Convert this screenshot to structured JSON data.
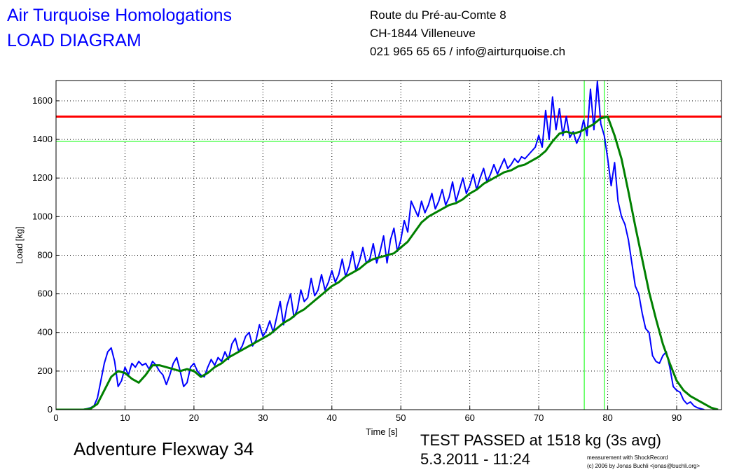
{
  "header": {
    "title": "Air Turquoise Homologations",
    "subtitle": "LOAD DIAGRAM",
    "address": [
      "Route du Pré-au-Comte 8",
      "CH-1844 Villeneuve",
      "021 965 65 65 / info@airturquoise.ch"
    ]
  },
  "chart_data": {
    "type": "line",
    "x_label": "Time [s]",
    "y_label": "Load [kg]",
    "xlim": [
      0,
      96.5
    ],
    "ylim": [
      0,
      1705
    ],
    "xticks": [
      0,
      10,
      20,
      30,
      40,
      50,
      60,
      70,
      80,
      90
    ],
    "yticks": [
      0,
      200,
      400,
      600,
      800,
      1000,
      1200,
      1400,
      1600
    ],
    "grid": true,
    "series": [
      {
        "color": "#0000ff",
        "x": [
          0,
          0.5,
          1,
          1.5,
          2,
          2.5,
          3,
          3.5,
          4,
          4.5,
          5,
          5.5,
          6,
          6.5,
          7,
          7.5,
          8,
          8.5,
          9,
          9.5,
          10,
          10.5,
          11,
          11.5,
          12,
          12.5,
          13,
          13.5,
          14,
          14.5,
          15,
          15.5,
          16,
          16.5,
          17,
          17.5,
          18,
          18.5,
          19,
          19.5,
          20,
          20.5,
          21,
          21.5,
          22,
          22.5,
          23,
          23.5,
          24,
          24.5,
          25,
          25.5,
          26,
          26.5,
          27,
          27.5,
          28,
          28.5,
          29,
          29.5,
          30,
          30.5,
          31,
          31.5,
          32,
          32.5,
          33,
          33.5,
          34,
          34.5,
          35,
          35.5,
          36,
          36.5,
          37,
          37.5,
          38,
          38.5,
          39,
          39.5,
          40,
          40.5,
          41,
          41.5,
          42,
          42.5,
          43,
          43.5,
          44,
          44.5,
          45,
          45.5,
          46,
          46.5,
          47,
          47.5,
          48,
          48.5,
          49,
          49.5,
          50,
          50.5,
          51,
          51.5,
          52,
          52.5,
          53,
          53.5,
          54,
          54.5,
          55,
          55.5,
          56,
          56.5,
          57,
          57.5,
          58,
          58.5,
          59,
          59.5,
          60,
          60.5,
          61,
          61.5,
          62,
          62.5,
          63,
          63.5,
          64,
          64.5,
          65,
          65.5,
          66,
          66.5,
          67,
          67.5,
          68,
          68.5,
          69,
          69.5,
          70,
          70.5,
          71,
          71.5,
          72,
          72.5,
          73,
          73.5,
          74,
          74.5,
          75,
          75.5,
          76,
          76.5,
          77,
          77.5,
          78,
          78.5,
          79,
          79.5,
          80,
          80.5,
          81,
          81.5,
          82,
          82.5,
          83,
          83.5,
          84,
          84.5,
          85,
          85.5,
          86,
          86.5,
          87,
          87.5,
          88,
          88.5,
          89,
          89.5,
          90,
          90.5,
          91,
          91.5,
          92,
          92.5,
          93,
          93.5,
          94
        ],
        "values": [
          0,
          0,
          0,
          0,
          0,
          0,
          0,
          0,
          2,
          5,
          10,
          20,
          60,
          150,
          240,
          300,
          320,
          250,
          120,
          150,
          220,
          180,
          240,
          220,
          250,
          230,
          240,
          210,
          250,
          230,
          200,
          180,
          130,
          180,
          240,
          270,
          200,
          120,
          140,
          220,
          240,
          200,
          180,
          170,
          220,
          260,
          230,
          270,
          250,
          300,
          260,
          340,
          370,
          300,
          330,
          380,
          400,
          330,
          360,
          440,
          380,
          410,
          460,
          400,
          480,
          560,
          440,
          540,
          600,
          480,
          520,
          620,
          560,
          580,
          680,
          590,
          620,
          700,
          620,
          660,
          720,
          660,
          700,
          780,
          690,
          740,
          820,
          720,
          770,
          840,
          760,
          780,
          860,
          760,
          820,
          900,
          760,
          880,
          940,
          820,
          880,
          980,
          920,
          1080,
          1040,
          1000,
          1080,
          1020,
          1060,
          1120,
          1040,
          1080,
          1140,
          1060,
          1100,
          1180,
          1080,
          1140,
          1200,
          1120,
          1160,
          1220,
          1140,
          1200,
          1250,
          1180,
          1220,
          1270,
          1220,
          1260,
          1300,
          1250,
          1270,
          1300,
          1280,
          1310,
          1300,
          1320,
          1340,
          1360,
          1420,
          1360,
          1550,
          1400,
          1620,
          1450,
          1560,
          1420,
          1520,
          1410,
          1440,
          1380,
          1420,
          1500,
          1420,
          1660,
          1450,
          1700,
          1480,
          1420,
          1300,
          1160,
          1280,
          1080,
          1000,
          960,
          880,
          760,
          640,
          600,
          500,
          420,
          400,
          280,
          250,
          240,
          280,
          300,
          220,
          120,
          100,
          90,
          50,
          30,
          40,
          20,
          10,
          5,
          0
        ]
      },
      {
        "color": "#008000",
        "x": [
          0,
          1,
          2,
          3,
          4,
          5,
          6,
          7,
          8,
          9,
          10,
          11,
          12,
          13,
          14,
          15,
          16,
          17,
          18,
          19,
          20,
          21,
          22,
          23,
          24,
          25,
          26,
          27,
          28,
          29,
          30,
          31,
          32,
          33,
          34,
          35,
          36,
          37,
          38,
          39,
          40,
          41,
          42,
          43,
          44,
          45,
          46,
          47,
          48,
          49,
          50,
          51,
          52,
          53,
          54,
          55,
          56,
          57,
          58,
          59,
          60,
          61,
          62,
          63,
          64,
          65,
          66,
          67,
          68,
          69,
          70,
          71,
          72,
          73,
          74,
          75,
          76,
          77,
          78,
          79,
          80,
          81,
          82,
          83,
          84,
          85,
          86,
          87,
          88,
          89,
          90,
          91,
          92,
          93,
          94,
          95,
          96
        ],
        "values": [
          0,
          0,
          0,
          0,
          0,
          5,
          30,
          100,
          170,
          200,
          190,
          160,
          140,
          180,
          230,
          230,
          220,
          210,
          200,
          210,
          200,
          170,
          190,
          220,
          240,
          270,
          290,
          310,
          330,
          350,
          370,
          390,
          420,
          450,
          470,
          500,
          520,
          550,
          580,
          610,
          640,
          660,
          690,
          710,
          730,
          760,
          780,
          790,
          800,
          810,
          840,
          870,
          920,
          970,
          1000,
          1020,
          1040,
          1060,
          1070,
          1090,
          1120,
          1140,
          1170,
          1190,
          1210,
          1230,
          1240,
          1260,
          1270,
          1290,
          1310,
          1340,
          1390,
          1430,
          1440,
          1430,
          1440,
          1460,
          1480,
          1510,
          1518,
          1420,
          1300,
          1130,
          950,
          780,
          610,
          470,
          340,
          240,
          150,
          100,
          70,
          50,
          30,
          10,
          0
        ]
      }
    ],
    "hlines": [
      {
        "value": 1518,
        "color": "#ff0000"
      },
      {
        "value": 1390,
        "color": "#00ff00"
      }
    ],
    "vlines": [
      {
        "value": 76.6,
        "color": "#00ff00"
      },
      {
        "value": 79.5,
        "color": "#00ff00"
      }
    ]
  },
  "footer": {
    "glider": "Adventure Flexway 34",
    "result": "TEST PASSED at 1518 kg (3s avg)",
    "date": "5.3.2011 - 11:24",
    "credit": [
      "measurement with ShockRecord",
      "(c) 2006 by Jonas Buchli <jonas@buchli.org>"
    ]
  }
}
